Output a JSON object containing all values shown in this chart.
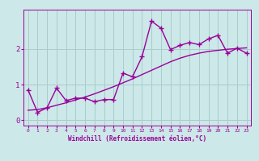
{
  "title": "",
  "xlabel": "Windchill (Refroidissement éolien,°C)",
  "ylabel": "",
  "background_color": "#cce8e8",
  "grid_color": "#aacccc",
  "line_color": "#990099",
  "x_data": [
    0,
    1,
    2,
    3,
    4,
    5,
    6,
    7,
    8,
    9,
    10,
    11,
    12,
    13,
    14,
    15,
    16,
    17,
    18,
    19,
    20,
    21,
    22,
    23
  ],
  "y_scatter": [
    0.85,
    0.22,
    0.35,
    0.9,
    0.55,
    0.62,
    0.62,
    0.52,
    0.58,
    0.58,
    1.32,
    1.22,
    1.78,
    2.78,
    2.58,
    1.98,
    2.1,
    2.18,
    2.12,
    2.28,
    2.38,
    1.88,
    2.02,
    1.88
  ],
  "y_smooth": [
    0.28,
    0.3,
    0.35,
    0.42,
    0.49,
    0.57,
    0.65,
    0.74,
    0.84,
    0.94,
    1.05,
    1.16,
    1.28,
    1.4,
    1.52,
    1.64,
    1.74,
    1.82,
    1.88,
    1.93,
    1.96,
    1.99,
    2.01,
    2.03
  ],
  "xlim": [
    -0.5,
    23.5
  ],
  "ylim": [
    -0.15,
    3.1
  ],
  "xticks": [
    0,
    1,
    2,
    3,
    4,
    5,
    6,
    7,
    8,
    9,
    10,
    11,
    12,
    13,
    14,
    15,
    16,
    17,
    18,
    19,
    20,
    21,
    22,
    23
  ],
  "yticks": [
    0,
    1,
    2
  ],
  "marker": "+",
  "markersize": 5,
  "linewidth": 1.0
}
